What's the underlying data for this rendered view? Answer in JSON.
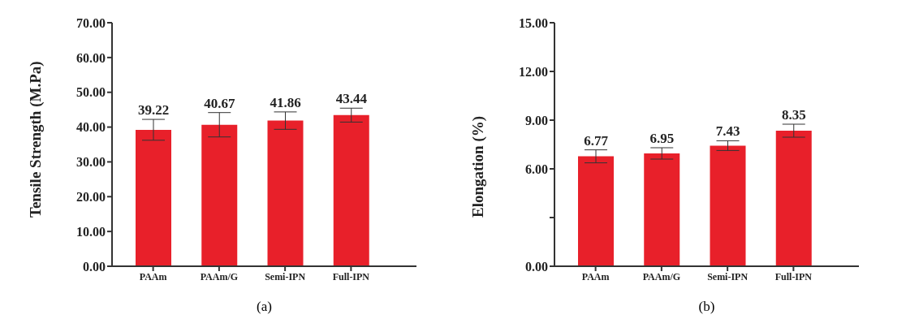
{
  "chart_data": [
    {
      "type": "bar",
      "ylabel": "Tensile Strength (M.Pa)",
      "categories": [
        "PAAm",
        "PAAm/G",
        "Semi-IPN",
        "Full-IPN"
      ],
      "values": [
        39.22,
        40.67,
        41.86,
        43.44
      ],
      "errors": [
        3,
        3.5,
        2.5,
        2
      ],
      "color": "#e8202a",
      "data_labels": true,
      "ylim": [
        0,
        70
      ],
      "yticks": [
        {
          "value": 0,
          "label": "0.00"
        },
        {
          "value": 10,
          "label": "10.00"
        },
        {
          "value": 20,
          "label": "20.00"
        },
        {
          "value": 30,
          "label": "30.00"
        },
        {
          "value": 40,
          "label": "40.00"
        },
        {
          "value": 50,
          "label": "50.00"
        },
        {
          "value": 60,
          "label": "60.00"
        },
        {
          "value": 70,
          "label": "70.00"
        }
      ],
      "grid": false,
      "legend": false,
      "annotations": [
        "(a)"
      ]
    },
    {
      "type": "bar",
      "ylabel": "Elongation (%)",
      "categories": [
        "PAAm",
        "PAAm/G",
        "Semi-IPN",
        "Full-IPN"
      ],
      "values": [
        6.77,
        6.95,
        7.43,
        8.35
      ],
      "errors": [
        0.4,
        0.35,
        0.3,
        0.4
      ],
      "color": "#e8202a",
      "data_labels": true,
      "ylim": [
        0,
        15
      ],
      "yticks": [
        {
          "value": 0,
          "label": "0.00"
        },
        {
          "value": 3,
          "label": null
        },
        {
          "value": 6,
          "label": "6.00"
        },
        {
          "value": 9,
          "label": "9.00"
        },
        {
          "value": 12,
          "label": "12.00"
        },
        {
          "value": 15,
          "label": "15.00"
        }
      ],
      "grid": false,
      "legend": false,
      "annotations": [
        "(b)"
      ]
    }
  ]
}
